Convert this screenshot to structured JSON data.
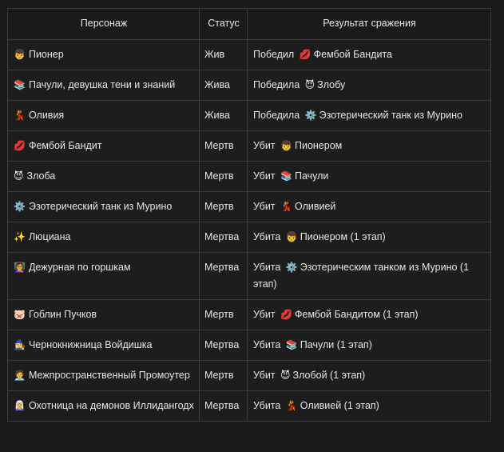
{
  "table": {
    "headers": {
      "character": "Персонаж",
      "status": "Статус",
      "result": "Результат сражения"
    },
    "rows": [
      {
        "icon": "👦",
        "name": "Пионер",
        "status": "Жив",
        "verb": "Победил",
        "opp_icon": "💋",
        "opp": "Фембой Бандита"
      },
      {
        "icon": "📚",
        "name": "Пачули, девушка тени и знаний",
        "status": "Жива",
        "verb": "Победила",
        "opp_icon": "😈",
        "opp": "Злобу"
      },
      {
        "icon": "💃",
        "name": "Оливия",
        "status": "Жива",
        "verb": "Победила",
        "opp_icon": "⚙️",
        "opp": "Эзотерический танк из Мурино"
      },
      {
        "icon": "💋",
        "name": "Фембой Бандит",
        "status": "Мертв",
        "verb": "Убит",
        "opp_icon": "👦",
        "opp": "Пионером"
      },
      {
        "icon": "😈",
        "name": "Злоба",
        "status": "Мертв",
        "verb": "Убит",
        "opp_icon": "📚",
        "opp": "Пачули"
      },
      {
        "icon": "⚙️",
        "name": "Эзотерический танк из Мурино",
        "status": "Мертв",
        "verb": "Убит",
        "opp_icon": "💃",
        "opp": "Оливией"
      },
      {
        "icon": "✨",
        "name": "Люциана",
        "status": "Мертва",
        "verb": "Убита",
        "opp_icon": "👦",
        "opp": "Пионером (1 этап)"
      },
      {
        "icon": "👩‍🏫",
        "name": "Дежурная по горшкам",
        "status": "Мертва",
        "verb": "Убита",
        "opp_icon": "⚙️",
        "opp": "Эзотерическим танком из Мурино (1 этап)"
      },
      {
        "icon": "🐷",
        "name": "Гоблин Пучков",
        "status": "Мертв",
        "verb": "Убит",
        "opp_icon": "💋",
        "opp": "Фембой Бандитом (1 этап)"
      },
      {
        "icon": "🧙‍♀️",
        "name": "Чернокнижница Войдишка",
        "status": "Мертва",
        "verb": "Убита",
        "opp_icon": "📚",
        "opp": "Пачули (1 этап)"
      },
      {
        "icon": "🧑‍💼",
        "name": "Межпространственный Промоутер",
        "status": "Мертв",
        "verb": "Убит",
        "opp_icon": "😈",
        "opp": "Злобой (1 этап)"
      },
      {
        "icon": "🧝‍♀️",
        "name": "Охотница на демонов Иллидангодх",
        "status": "Мертва",
        "verb": "Убита",
        "opp_icon": "💃",
        "opp": "Оливией (1 этап)"
      }
    ]
  }
}
